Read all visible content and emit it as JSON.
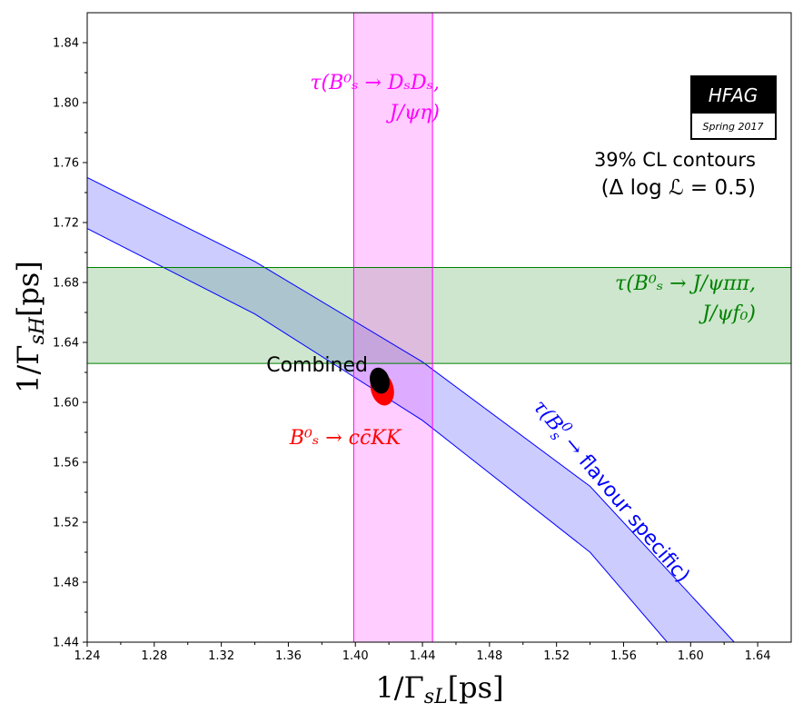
{
  "chart_data": {
    "type": "contour",
    "xlabel": "1/Γ",
    "xlabel_sub": "sL",
    "xlabel_unit": "[ps]",
    "ylabel": "1/Γ",
    "ylabel_sub": "sH",
    "ylabel_unit": "[ps]",
    "xlim": [
      1.24,
      1.66
    ],
    "ylim": [
      1.44,
      1.86
    ],
    "x_ticks": [
      "1.24",
      "1.28",
      "1.32",
      "1.36",
      "1.40",
      "1.44",
      "1.48",
      "1.52",
      "1.56",
      "1.60",
      "1.64"
    ],
    "y_ticks": [
      "1.44",
      "1.48",
      "1.52",
      "1.56",
      "1.60",
      "1.64",
      "1.68",
      "1.72",
      "1.76",
      "1.80",
      "1.84"
    ],
    "x_tick_values": [
      1.24,
      1.28,
      1.32,
      1.36,
      1.4,
      1.44,
      1.48,
      1.52,
      1.56,
      1.6,
      1.64
    ],
    "y_tick_values": [
      1.44,
      1.48,
      1.52,
      1.56,
      1.6,
      1.64,
      1.68,
      1.72,
      1.76,
      1.8,
      1.84
    ],
    "bands": [
      {
        "name": "flavour_specific",
        "label_math": "τ(B",
        "label_rest": " flavour specific)",
        "color": "#0000ff",
        "fill": "#ccccff",
        "upper_edge": [
          [
            1.24,
            1.75
          ],
          [
            1.34,
            1.694
          ],
          [
            1.44,
            1.627
          ],
          [
            1.54,
            1.544
          ],
          [
            1.626,
            1.44
          ]
        ],
        "lower_edge": [
          [
            1.24,
            1.716
          ],
          [
            1.34,
            1.659
          ],
          [
            1.44,
            1.588
          ],
          [
            1.54,
            1.5
          ],
          [
            1.586,
            1.44
          ]
        ]
      },
      {
        "name": "DsDs_Jpsieta",
        "label_line1": "τ(B⁰ₛ → DₛDₛ,",
        "label_line2": "J/ψη)",
        "color": "#ff00ff",
        "fill": "#ffccff",
        "x_range": [
          1.399,
          1.446
        ]
      },
      {
        "name": "Jpsipipi_Jpsif0",
        "label_line1": "τ(B⁰ₛ → J/ψππ,",
        "label_line2": "J/ψf₀)",
        "color": "#008000",
        "fill": "#cce5cc",
        "y_range": [
          1.626,
          1.69
        ]
      }
    ],
    "ellipses": [
      {
        "name": "ccKK",
        "label": "B⁰ₛ → cc̄KK",
        "color": "#ff0000",
        "center": [
          1.416,
          1.609
        ],
        "semi_x": 0.0065,
        "semi_y": 0.011,
        "angle_deg": -15
      },
      {
        "name": "combined",
        "label": "Combined",
        "color": "#000000",
        "center": [
          1.4145,
          1.6145
        ],
        "semi_x": 0.0055,
        "semi_y": 0.0085,
        "angle_deg": -15
      }
    ],
    "annotation_line1": "39% CL contours",
    "annotation_line2": "(Δ log ℒ = 0.5)",
    "logo_title": "HFAG",
    "logo_subtitle": "Spring 2017"
  }
}
